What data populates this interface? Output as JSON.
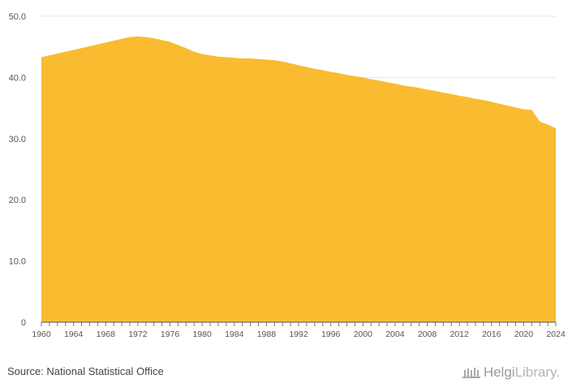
{
  "chart_data": {
    "type": "area",
    "title": "",
    "xlabel": "",
    "ylabel": "",
    "ylim": [
      0,
      50
    ],
    "y_ticks": [
      {
        "value": 0,
        "label": "0"
      },
      {
        "value": 10,
        "label": "10.0"
      },
      {
        "value": 20,
        "label": "20.0"
      },
      {
        "value": 30,
        "label": "30.0"
      },
      {
        "value": 40,
        "label": "40.0"
      },
      {
        "value": 50,
        "label": "50.0"
      }
    ],
    "x_ticks": [
      "1960",
      "1964",
      "1968",
      "1972",
      "1976",
      "1980",
      "1984",
      "1988",
      "1992",
      "1996",
      "2000",
      "2004",
      "2008",
      "2012",
      "2016",
      "2020",
      "2024"
    ],
    "xlim": [
      1960,
      2024
    ],
    "color": "#f9bb30",
    "series": [
      {
        "name": "",
        "x": [
          1960,
          1961,
          1962,
          1963,
          1964,
          1965,
          1966,
          1967,
          1968,
          1969,
          1970,
          1971,
          1972,
          1973,
          1974,
          1975,
          1976,
          1977,
          1978,
          1979,
          1980,
          1981,
          1982,
          1983,
          1984,
          1985,
          1986,
          1987,
          1988,
          1989,
          1990,
          1991,
          1992,
          1993,
          1994,
          1995,
          1996,
          1997,
          1998,
          1999,
          2000,
          2001,
          2002,
          2003,
          2004,
          2005,
          2006,
          2007,
          2008,
          2009,
          2010,
          2011,
          2012,
          2013,
          2014,
          2015,
          2016,
          2017,
          2018,
          2019,
          2020,
          2021,
          2022,
          2023,
          2024
        ],
        "values": [
          43.3,
          43.6,
          43.9,
          44.2,
          44.5,
          44.8,
          45.1,
          45.4,
          45.7,
          46.0,
          46.3,
          46.6,
          46.7,
          46.6,
          46.4,
          46.1,
          45.8,
          45.3,
          44.8,
          44.2,
          43.8,
          43.6,
          43.4,
          43.3,
          43.2,
          43.1,
          43.1,
          43.0,
          42.9,
          42.8,
          42.6,
          42.3,
          42.0,
          41.7,
          41.4,
          41.2,
          40.9,
          40.7,
          40.4,
          40.2,
          40.0,
          39.7,
          39.5,
          39.2,
          39.0,
          38.7,
          38.5,
          38.3,
          38.0,
          37.8,
          37.5,
          37.3,
          37.0,
          36.8,
          36.5,
          36.3,
          36.0,
          35.7,
          35.4,
          35.1,
          34.8,
          34.7,
          32.8,
          32.3,
          31.7
        ]
      }
    ]
  },
  "footer": {
    "source": "Source: National Statistical Office",
    "brand_part1": "Helgi",
    "brand_part2": "Library."
  }
}
